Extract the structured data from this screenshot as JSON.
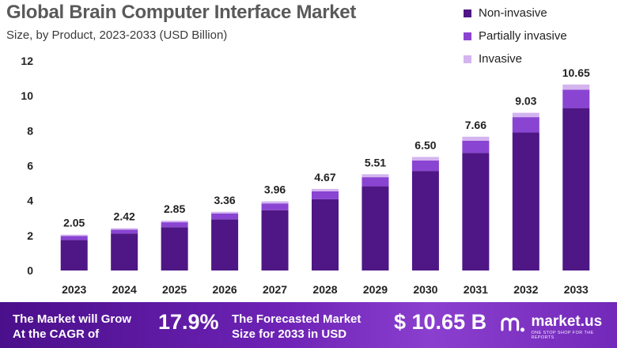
{
  "chart_data": {
    "type": "bar",
    "stacked": true,
    "title": "Global Brain Computer Interface Market",
    "subtitle": "Size, by Product, 2023-2033 (USD Billion)",
    "categories": [
      "2023",
      "2024",
      "2025",
      "2026",
      "2027",
      "2028",
      "2029",
      "2030",
      "2031",
      "2032",
      "2033"
    ],
    "totals": [
      "2.05",
      "2.42",
      "2.85",
      "3.36",
      "3.96",
      "4.67",
      "5.51",
      "6.50",
      "7.66",
      "9.03",
      "10.65"
    ],
    "series": [
      {
        "name": "Non-invasive",
        "color": "#4e1785",
        "values": [
          1.75,
          2.12,
          2.48,
          2.93,
          3.45,
          4.08,
          4.82,
          5.7,
          6.73,
          7.9,
          9.3
        ]
      },
      {
        "name": "Partially invasive",
        "color": "#8a44d2",
        "values": [
          0.22,
          0.22,
          0.28,
          0.33,
          0.39,
          0.45,
          0.52,
          0.6,
          0.7,
          0.88,
          1.05
        ]
      },
      {
        "name": "Invasive",
        "color": "#d3b4ef",
        "values": [
          0.08,
          0.08,
          0.09,
          0.1,
          0.12,
          0.14,
          0.17,
          0.2,
          0.23,
          0.25,
          0.3
        ]
      }
    ],
    "yticks": [
      "0",
      "2",
      "4",
      "6",
      "8",
      "10",
      "12"
    ],
    "ylim": [
      0,
      12
    ],
    "grid": false,
    "legend": "top-right"
  },
  "footer": {
    "cagr_label_line1": "The Market will Grow",
    "cagr_label_line2": "At the CAGR of",
    "cagr_value": "17.9%",
    "forecast_label_line1": "The Forecasted Market",
    "forecast_label_line2": "Size for 2033 in USD",
    "forecast_value": "$ 10.65 B",
    "brand": "market.us",
    "tagline": "ONE STOP SHOP FOR THE REPORTS"
  }
}
